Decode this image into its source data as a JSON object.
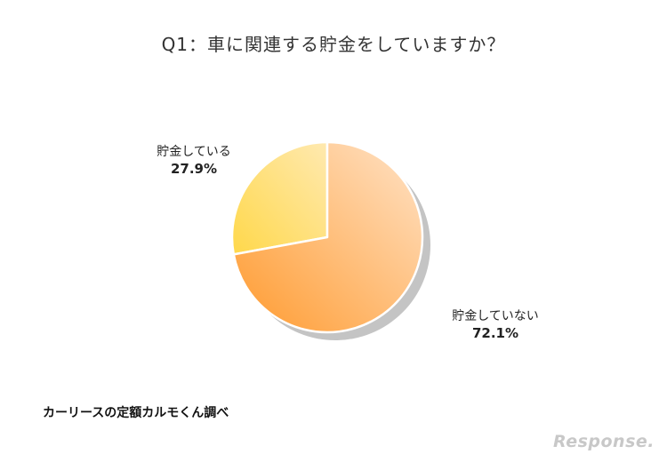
{
  "chart_data": {
    "type": "pie",
    "title": "Q1：車に関連する貯金をしていますか？",
    "slices": [
      {
        "label": "貯金している",
        "value": 27.9,
        "value_label": "27.9%",
        "color_start": "#ffd84a",
        "color_end": "#ffe9b0"
      },
      {
        "label": "貯金していない",
        "value": 72.1,
        "value_label": "72.1%",
        "color_start": "#ff9a2e",
        "color_end": "#ffe3c8"
      }
    ],
    "shadow_color": "#c4c4c4",
    "start_angle_deg": 0,
    "direction": "counter-clockwise"
  },
  "source": "カーリースの定額カルモくん調べ",
  "watermark": "Response."
}
